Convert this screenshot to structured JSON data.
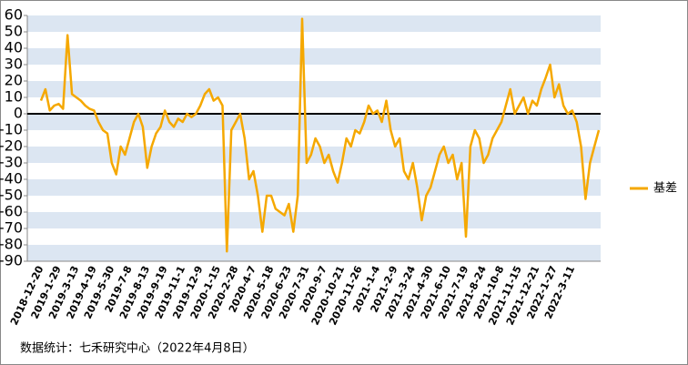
{
  "chart_data": {
    "type": "line",
    "categories": [
      "2018-12-20",
      null,
      null,
      null,
      "2019-1-29",
      null,
      null,
      null,
      "2019-3-13",
      null,
      null,
      null,
      "2019-4-19",
      null,
      null,
      null,
      "2019-5-30",
      null,
      null,
      null,
      "2019-7-8",
      null,
      null,
      null,
      "2019-8-13",
      null,
      null,
      null,
      "2019-9-19",
      null,
      null,
      null,
      "2019-11-1",
      null,
      null,
      null,
      "2019-12-9",
      null,
      null,
      null,
      "2020-1-15",
      null,
      null,
      null,
      "2020-2-28",
      null,
      null,
      null,
      "2020-4-7",
      null,
      null,
      null,
      "2020-5-18",
      null,
      null,
      null,
      "2020-6-23",
      null,
      null,
      null,
      "2020-7-31",
      null,
      null,
      null,
      "2020-9-7",
      null,
      null,
      null,
      "2020-10-21",
      null,
      null,
      null,
      "2020-11-26",
      null,
      null,
      null,
      "2021-1-4",
      null,
      null,
      null,
      "2021-2-9",
      null,
      null,
      null,
      "2021-3-24",
      null,
      null,
      null,
      "2021-4-30",
      null,
      null,
      null,
      "2021-6-10",
      null,
      null,
      null,
      "2021-7-19",
      null,
      null,
      null,
      "2021-8-24",
      null,
      null,
      null,
      "2021-10-8",
      null,
      null,
      null,
      "2021-11-15",
      null,
      null,
      null,
      "2021-12-21",
      null,
      null,
      null,
      "2022-1-27",
      null,
      null,
      null,
      "2022-3-11",
      null,
      null,
      null,
      null,
      null,
      null
    ],
    "series": [
      {
        "name": "基差",
        "color": "#f5a800",
        "values": [
          8,
          15,
          2,
          5,
          6,
          3,
          48,
          12,
          10,
          8,
          5,
          3,
          2,
          -5,
          -10,
          -12,
          -30,
          -37,
          -20,
          -25,
          -15,
          -5,
          0,
          -8,
          -33,
          -20,
          -12,
          -8,
          2,
          -5,
          -8,
          -3,
          -5,
          0,
          -2,
          0,
          5,
          12,
          15,
          8,
          10,
          5,
          -84,
          -10,
          -5,
          0,
          -15,
          -40,
          -35,
          -50,
          -72,
          -50,
          -50,
          -58,
          -60,
          -62,
          -55,
          -72,
          -50,
          58,
          -30,
          -25,
          -15,
          -20,
          -30,
          -25,
          -35,
          -42,
          -30,
          -15,
          -20,
          -10,
          -12,
          -5,
          5,
          0,
          2,
          -5,
          8,
          -10,
          -20,
          -15,
          -35,
          -40,
          -30,
          -45,
          -65,
          -50,
          -45,
          -35,
          -25,
          -20,
          -30,
          -25,
          -40,
          -30,
          -75,
          -20,
          -10,
          -15,
          -30,
          -25,
          -15,
          -10,
          -5,
          5,
          15,
          0,
          5,
          10,
          0,
          8,
          5,
          15,
          22,
          30,
          10,
          18,
          5,
          0,
          2,
          -5,
          -20,
          -52,
          -30,
          -20,
          -10
        ]
      }
    ],
    "ylim": [
      -90,
      60
    ],
    "yticks": [
      -90,
      -80,
      -70,
      -60,
      -50,
      -40,
      -30,
      -20,
      -10,
      0,
      10,
      20,
      30,
      40,
      50,
      60
    ],
    "footnote": "数据统计：七禾研究中心（2022年4月8日）"
  }
}
